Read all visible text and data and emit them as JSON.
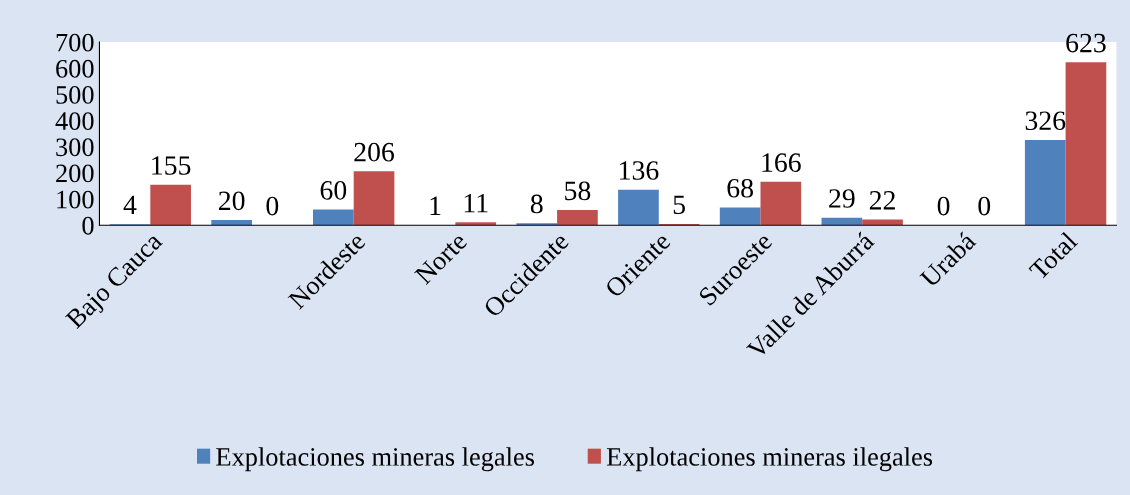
{
  "chart_data": {
    "type": "bar",
    "categories": [
      "Bajo Cauca",
      null,
      "Nordeste",
      "Norte",
      "Occidente",
      "Oriente",
      "Suroeste",
      "Valle de Aburrá",
      "Urabá",
      "Total"
    ],
    "series": [
      {
        "name": "Explotaciones mineras legales",
        "color": "#4f81bd",
        "values": [
          4,
          20,
          60,
          1,
          8,
          136,
          68,
          29,
          0,
          326
        ]
      },
      {
        "name": "Explotaciones mineras ilegales",
        "color": "#c0504d",
        "values": [
          155,
          0,
          206,
          11,
          58,
          5,
          166,
          22,
          0,
          623
        ]
      }
    ],
    "ylim": [
      0,
      700
    ],
    "yticks": [
      0,
      100,
      200,
      300,
      400,
      500,
      600,
      700
    ],
    "data_labels": true,
    "grid": false,
    "legend": "bottom"
  }
}
